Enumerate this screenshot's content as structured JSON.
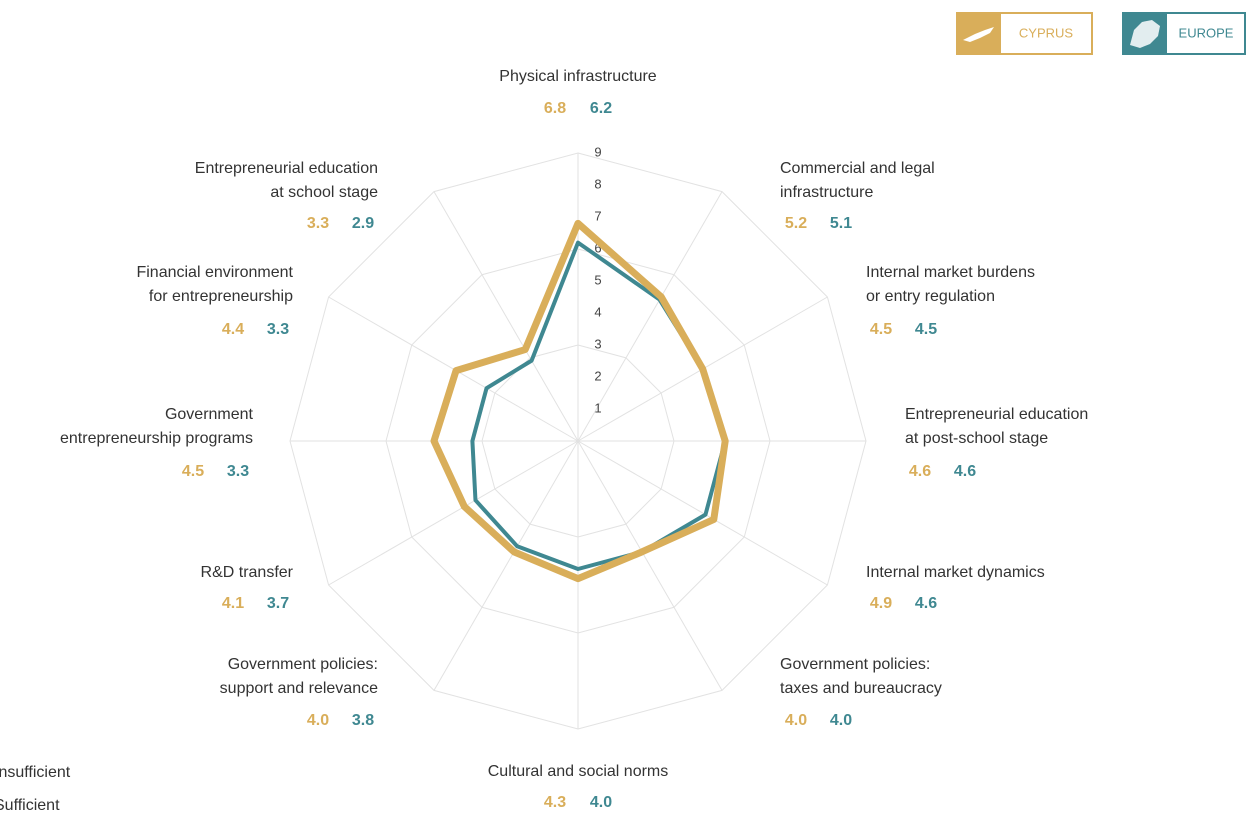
{
  "chart_data": {
    "type": "radar",
    "categories": [
      [
        "Physical infrastructure"
      ],
      [
        "Commercial and legal",
        "infrastructure"
      ],
      [
        "Internal market burdens",
        "or entry regulation"
      ],
      [
        "Entrepreneurial education",
        "at post-school stage"
      ],
      [
        "Internal market dynamics"
      ],
      [
        "Government policies:",
        "taxes and bureaucracy"
      ],
      [
        "Cultural and social norms"
      ],
      [
        "Government policies:",
        "support and relevance"
      ],
      [
        "R&D transfer"
      ],
      [
        "Government",
        "entrepreneurship programs"
      ],
      [
        "Financial environment",
        "for entrepreneurship"
      ],
      [
        "Entrepreneurial education",
        "at school stage"
      ]
    ],
    "series": [
      {
        "name": "CYPRUS",
        "color": "#d9ae5a",
        "values": [
          6.8,
          5.2,
          4.5,
          4.6,
          4.9,
          4.0,
          4.3,
          4.0,
          4.1,
          4.5,
          4.4,
          3.3
        ],
        "value_labels": [
          "6.8",
          "5.2",
          "4.5",
          "4.6",
          "4.9",
          "4.0",
          "4.3",
          "4.0",
          "4.1",
          "4.5",
          "4.4",
          "3.3"
        ]
      },
      {
        "name": "EUROPE",
        "color": "#3f8891",
        "values": [
          6.2,
          5.1,
          4.5,
          4.6,
          4.6,
          4.0,
          4.0,
          3.8,
          3.7,
          3.3,
          3.3,
          2.9
        ],
        "value_labels": [
          "6.2",
          "5.1",
          "4.5",
          "4.6",
          "4.6",
          "4.0",
          "4.0",
          "3.8",
          "3.7",
          "3.3",
          "3.3",
          "2.9"
        ]
      }
    ],
    "ylim": [
      0,
      9
    ],
    "yticks": [
      1,
      2,
      3,
      4,
      5,
      6,
      7,
      8,
      9
    ],
    "grid": true,
    "scale_legend": [
      "Insufficient",
      "Sufficient"
    ]
  }
}
